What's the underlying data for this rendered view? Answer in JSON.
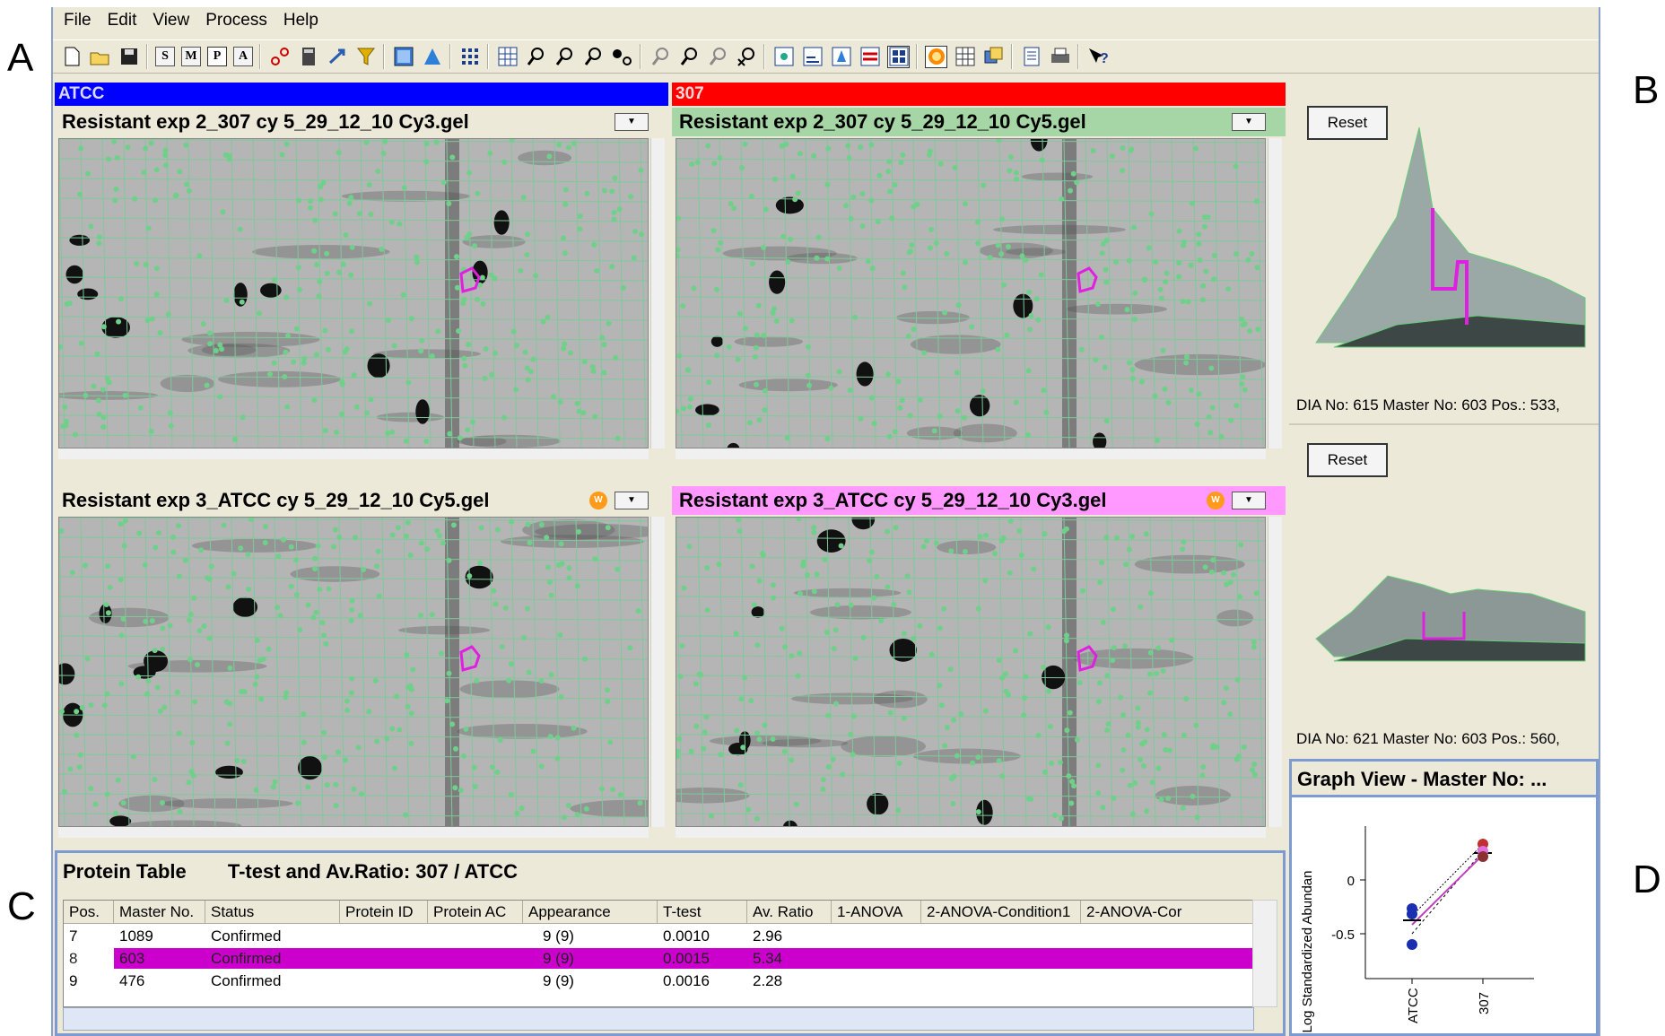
{
  "figure_labels": {
    "a": "A",
    "b": "B",
    "c": "C",
    "d": "D"
  },
  "menu": [
    "File",
    "Edit",
    "View",
    "Process",
    "Help"
  ],
  "toolbar": {
    "s": "S",
    "m": "M",
    "p": "P",
    "a": "A",
    "help": "?"
  },
  "groups": {
    "left": "ATCC",
    "right": "307"
  },
  "gels": [
    {
      "title": "Resistant  exp 2_307 cy 5_29_12_10 Cy3.gel",
      "header_color": "#ece9d8"
    },
    {
      "title": "Resistant  exp 2_307 cy 5_29_12_10 Cy5.gel",
      "header_color": "#a6d6a6"
    },
    {
      "title": "Resistant  exp 3_ATCC cy 5_29_12_10 Cy5.gel",
      "header_color": "#ece9d8"
    },
    {
      "title": "Resistant  exp 3_ATCC cy 5_29_12_10 Cy3.gel",
      "header_color": "#ff99ff"
    }
  ],
  "badge": "W",
  "reset_label": "Reset",
  "views3d": [
    {
      "info": "DIA No: 615  Master No: 603  Pos.: 533,"
    },
    {
      "info": "DIA No: 621  Master No: 603  Pos.: 560,"
    }
  ],
  "graph": {
    "title": "Graph View - Master No: ...",
    "ylabel": "Log Standardized Abundan",
    "yticks": [
      "0",
      "-0.5"
    ],
    "xticks": [
      "ATCC",
      "307"
    ]
  },
  "table": {
    "title": "Protein Table",
    "subtitle": "T-test and Av.Ratio: 307 / ATCC",
    "columns": [
      "Pos.",
      "Master No.",
      "Status",
      "Protein ID",
      "Protein AC",
      "Appearance",
      "T-test",
      "Av. Ratio",
      "1-ANOVA",
      "2-ANOVA-Condition1",
      "2-ANOVA-Cor"
    ],
    "rows": [
      {
        "pos": "7",
        "master": "1089",
        "status": "Confirmed",
        "appearance": "9 (9)",
        "ttest": "0.0010",
        "ratio": "2.96"
      },
      {
        "pos": "8",
        "master": "603",
        "status": "Confirmed",
        "appearance": "9 (9)",
        "ttest": "0.0015",
        "ratio": "5.34"
      },
      {
        "pos": "9",
        "master": "476",
        "status": "Confirmed",
        "appearance": "9 (9)",
        "ttest": "0.0016",
        "ratio": "2.28"
      }
    ],
    "selected_row": 1,
    "highlight_color": "#cc00cc"
  }
}
